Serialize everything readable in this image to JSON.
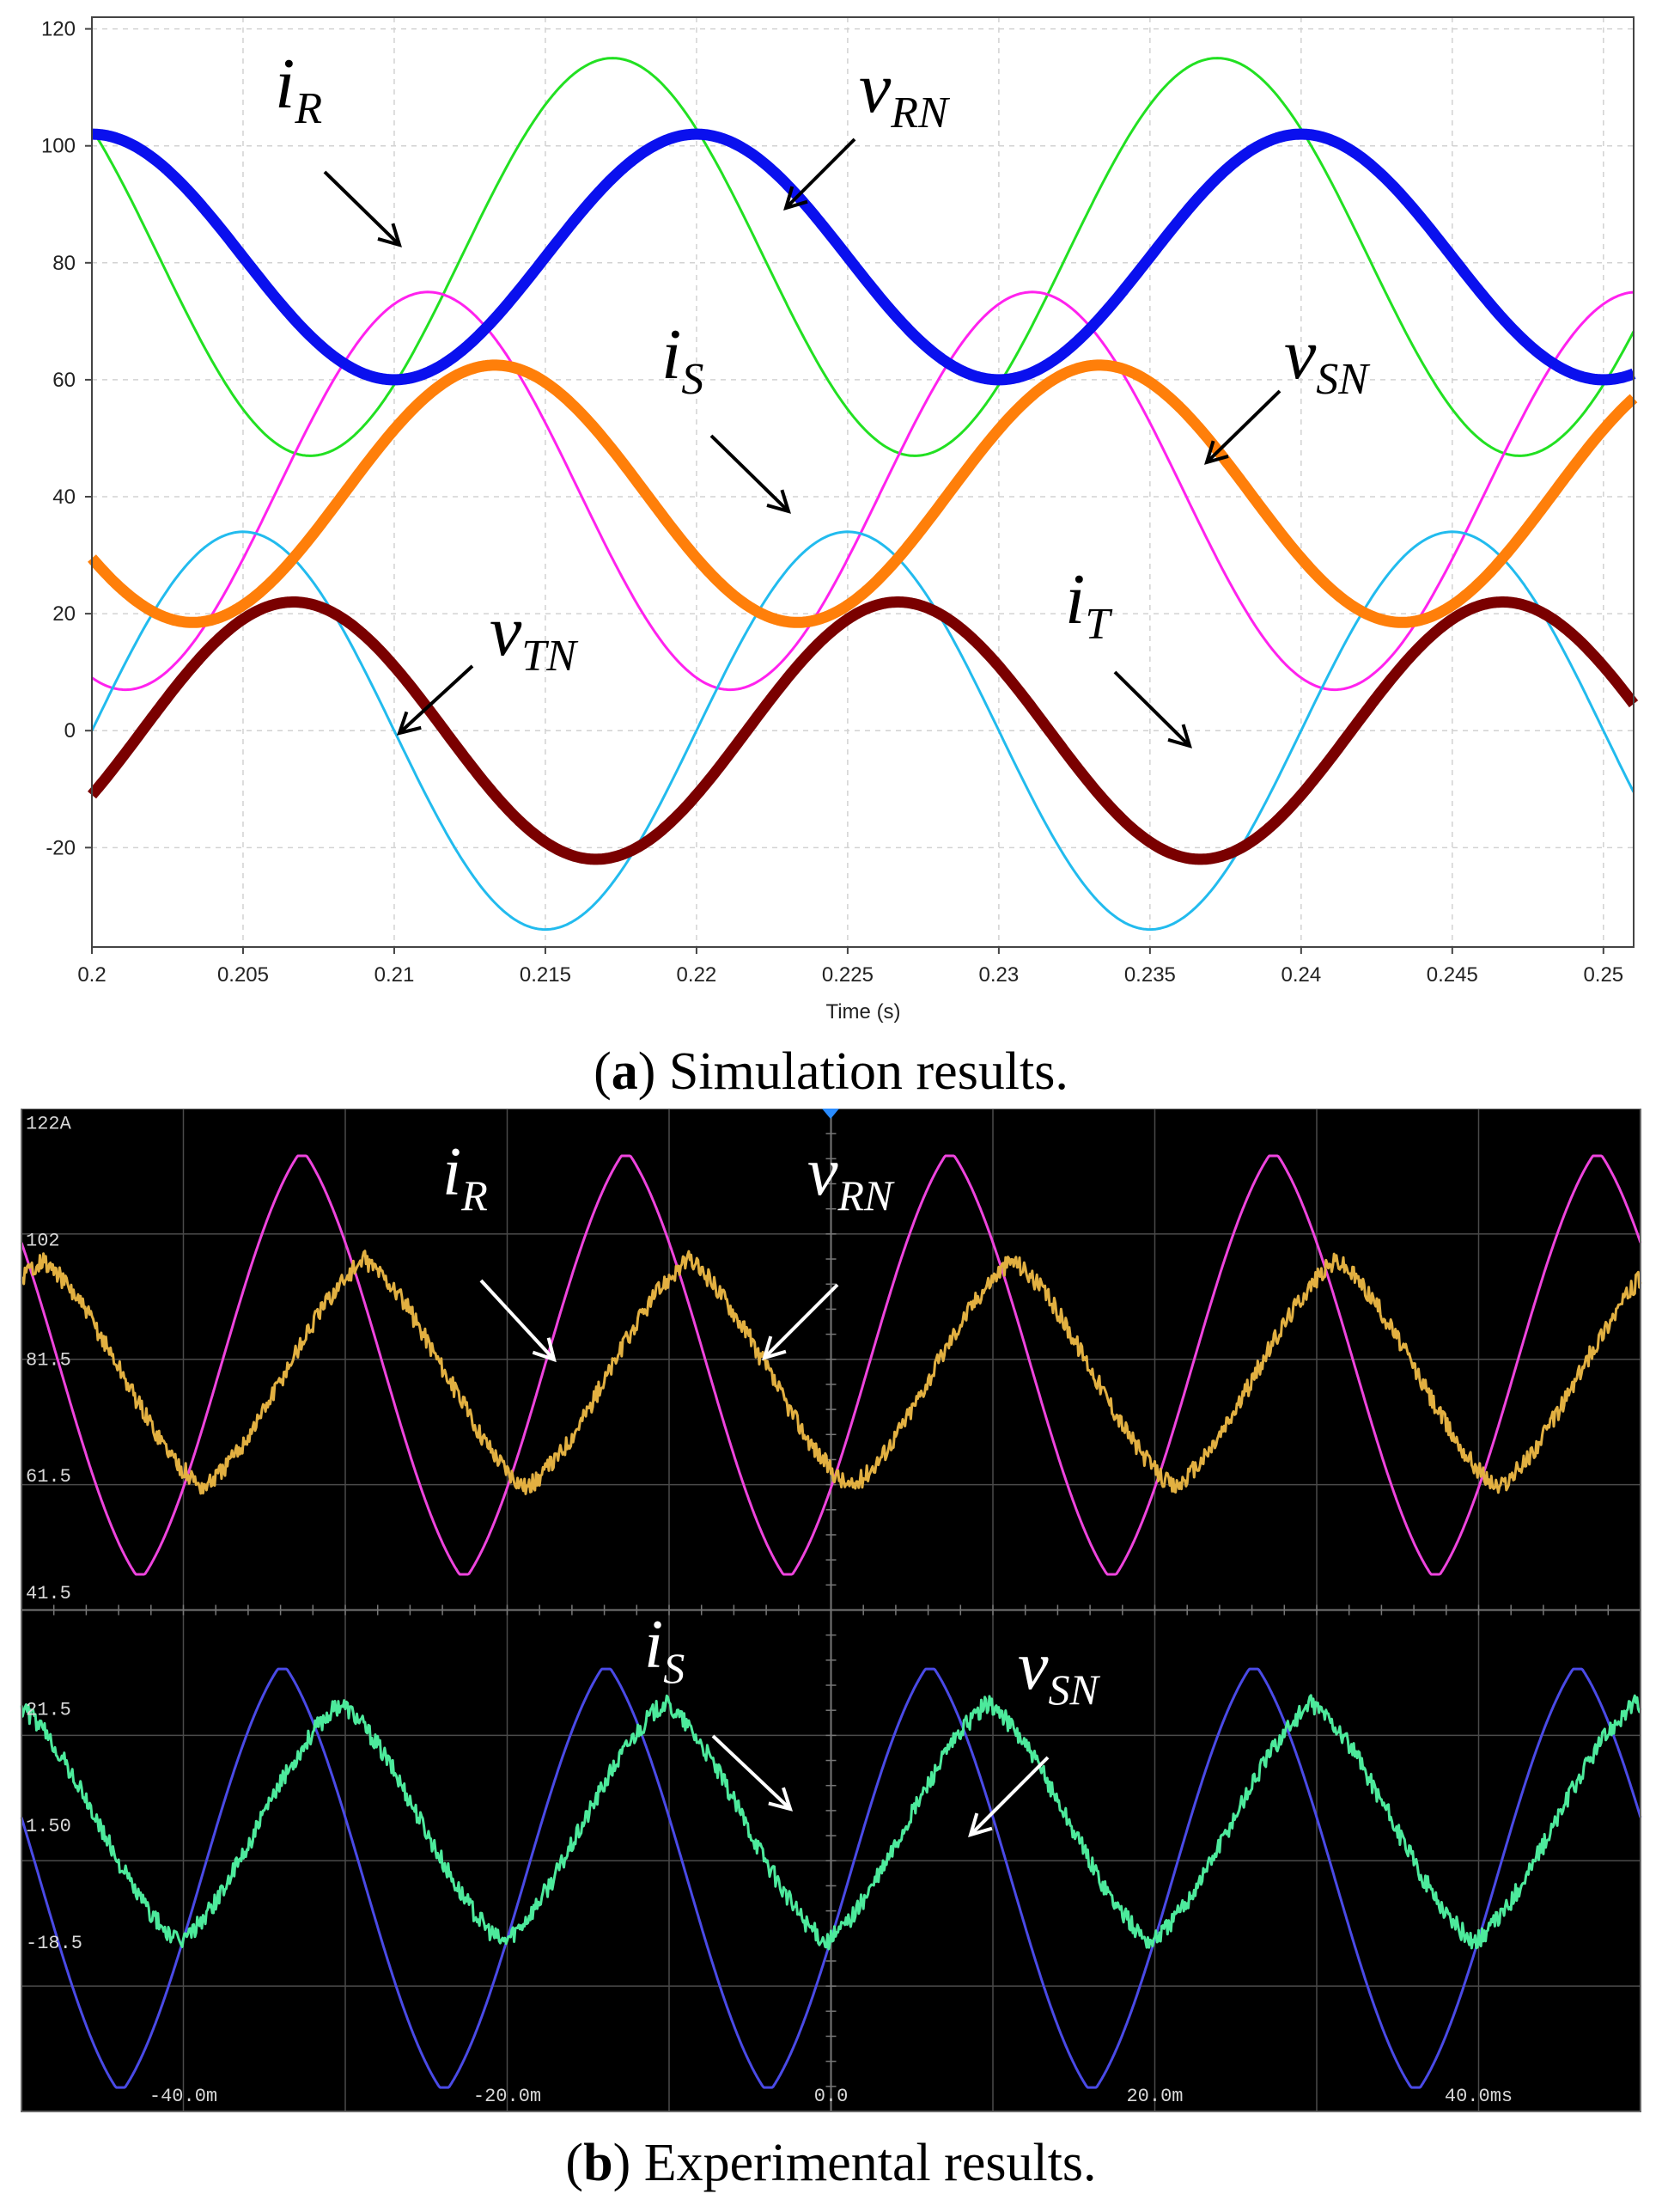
{
  "captions": {
    "a": {
      "prefix": "(",
      "letter": "a",
      "text": ") Simulation results."
    },
    "b": {
      "prefix": "(",
      "letter": "b",
      "text": ") Experimental results."
    }
  },
  "chart_data": [
    {
      "type": "line",
      "title": "(a) Simulation results.",
      "xlabel": "Time (s)",
      "ylabel": "",
      "xlim": [
        0.2,
        0.251
      ],
      "ylim": [
        -37,
        122
      ],
      "grid": true,
      "xticks": [
        "0.2",
        "0.205",
        "0.21",
        "0.215",
        "0.22",
        "0.225",
        "0.23",
        "0.235",
        "0.24",
        "0.245",
        "0.25"
      ],
      "xtick_values": [
        0.2,
        0.205,
        0.21,
        0.215,
        0.22,
        0.225,
        0.23,
        0.235,
        0.24,
        0.245,
        0.25
      ],
      "yticks": [
        "120",
        "100",
        "80",
        "60",
        "40",
        "20",
        "0",
        "-20"
      ],
      "ytick_values": [
        120,
        100,
        80,
        60,
        40,
        20,
        0,
        -20
      ],
      "series": [
        {
          "name": "v_RN",
          "label_main": "v",
          "label_sub": "RN",
          "color": "#22e022",
          "offset": 81,
          "amplitude": 34,
          "phase_deg": 140,
          "frequency_hz": 50,
          "width": 3
        },
        {
          "name": "v_SN",
          "label_main": "v",
          "label_sub": "SN",
          "color": "#ff22ee",
          "offset": 41,
          "amplitude": 34,
          "phase_deg": -110,
          "frequency_hz": 50,
          "width": 3
        },
        {
          "name": "v_TN",
          "label_main": "v",
          "label_sub": "TN",
          "color": "#22bbee",
          "offset": 0,
          "amplitude": 34,
          "phase_deg": 0,
          "frequency_hz": 50,
          "width": 3
        },
        {
          "name": "i_R",
          "label_main": "i",
          "label_sub": "R",
          "color": "#0a10ee",
          "offset": 81,
          "amplitude": 21,
          "phase_deg": 90,
          "frequency_hz": 50,
          "width": 13
        },
        {
          "name": "i_S",
          "label_main": "i",
          "label_sub": "S",
          "color": "#ff7f0a",
          "offset": 40.5,
          "amplitude": 22,
          "phase_deg": -150,
          "frequency_hz": 50,
          "width": 13
        },
        {
          "name": "i_T",
          "label_main": "i",
          "label_sub": "T",
          "color": "#7a0000",
          "offset": 0,
          "amplitude": 22,
          "phase_deg": -30,
          "frequency_hz": 50,
          "width": 13
        }
      ]
    },
    {
      "type": "line",
      "title": "(b) Experimental results.",
      "xlabel": "",
      "ylabel": "",
      "xlim": [
        -50,
        50
      ],
      "ylim": [
        -48,
        124
      ],
      "grid": true,
      "xticks": [
        "-40.0m",
        "-20.0m",
        "0.0",
        "20.0m",
        "40.0ms"
      ],
      "xtick_values": [
        -40,
        -20,
        0,
        20,
        40
      ],
      "yticks": [
        "122A",
        "102",
        "81.5",
        "61.5",
        "41.5",
        "21.5",
        "1.50",
        "-18.5"
      ],
      "ytick_values": [
        122,
        102,
        81.5,
        61.5,
        41.5,
        21.5,
        1.5,
        -18.5
      ],
      "series": [
        {
          "name": "v_RN",
          "label_main": "v",
          "label_sub": "RN",
          "color": "#ee44dd",
          "offset": 80,
          "amplitude": 37,
          "phase_deg": -42,
          "frequency_hz": 50,
          "width": 3
        },
        {
          "name": "i_R",
          "label_main": "i",
          "label_sub": "R",
          "color": "#e2b041",
          "offset": 78.5,
          "amplitude": 19.5,
          "phase_deg": -112,
          "frequency_hz": 50,
          "width": 3
        },
        {
          "name": "v_SN",
          "label_main": "v",
          "label_sub": "SN",
          "color": "#4a4ae6",
          "offset": -8,
          "amplitude": 37,
          "phase_deg": -20,
          "frequency_hz": 50,
          "width": 3
        },
        {
          "name": "i_S",
          "label_main": "i",
          "label_sub": "S",
          "color": "#4dea9c",
          "offset": 1.5,
          "amplitude": 20.5,
          "phase_deg": -85,
          "frequency_hz": 50,
          "width": 3
        }
      ]
    }
  ]
}
